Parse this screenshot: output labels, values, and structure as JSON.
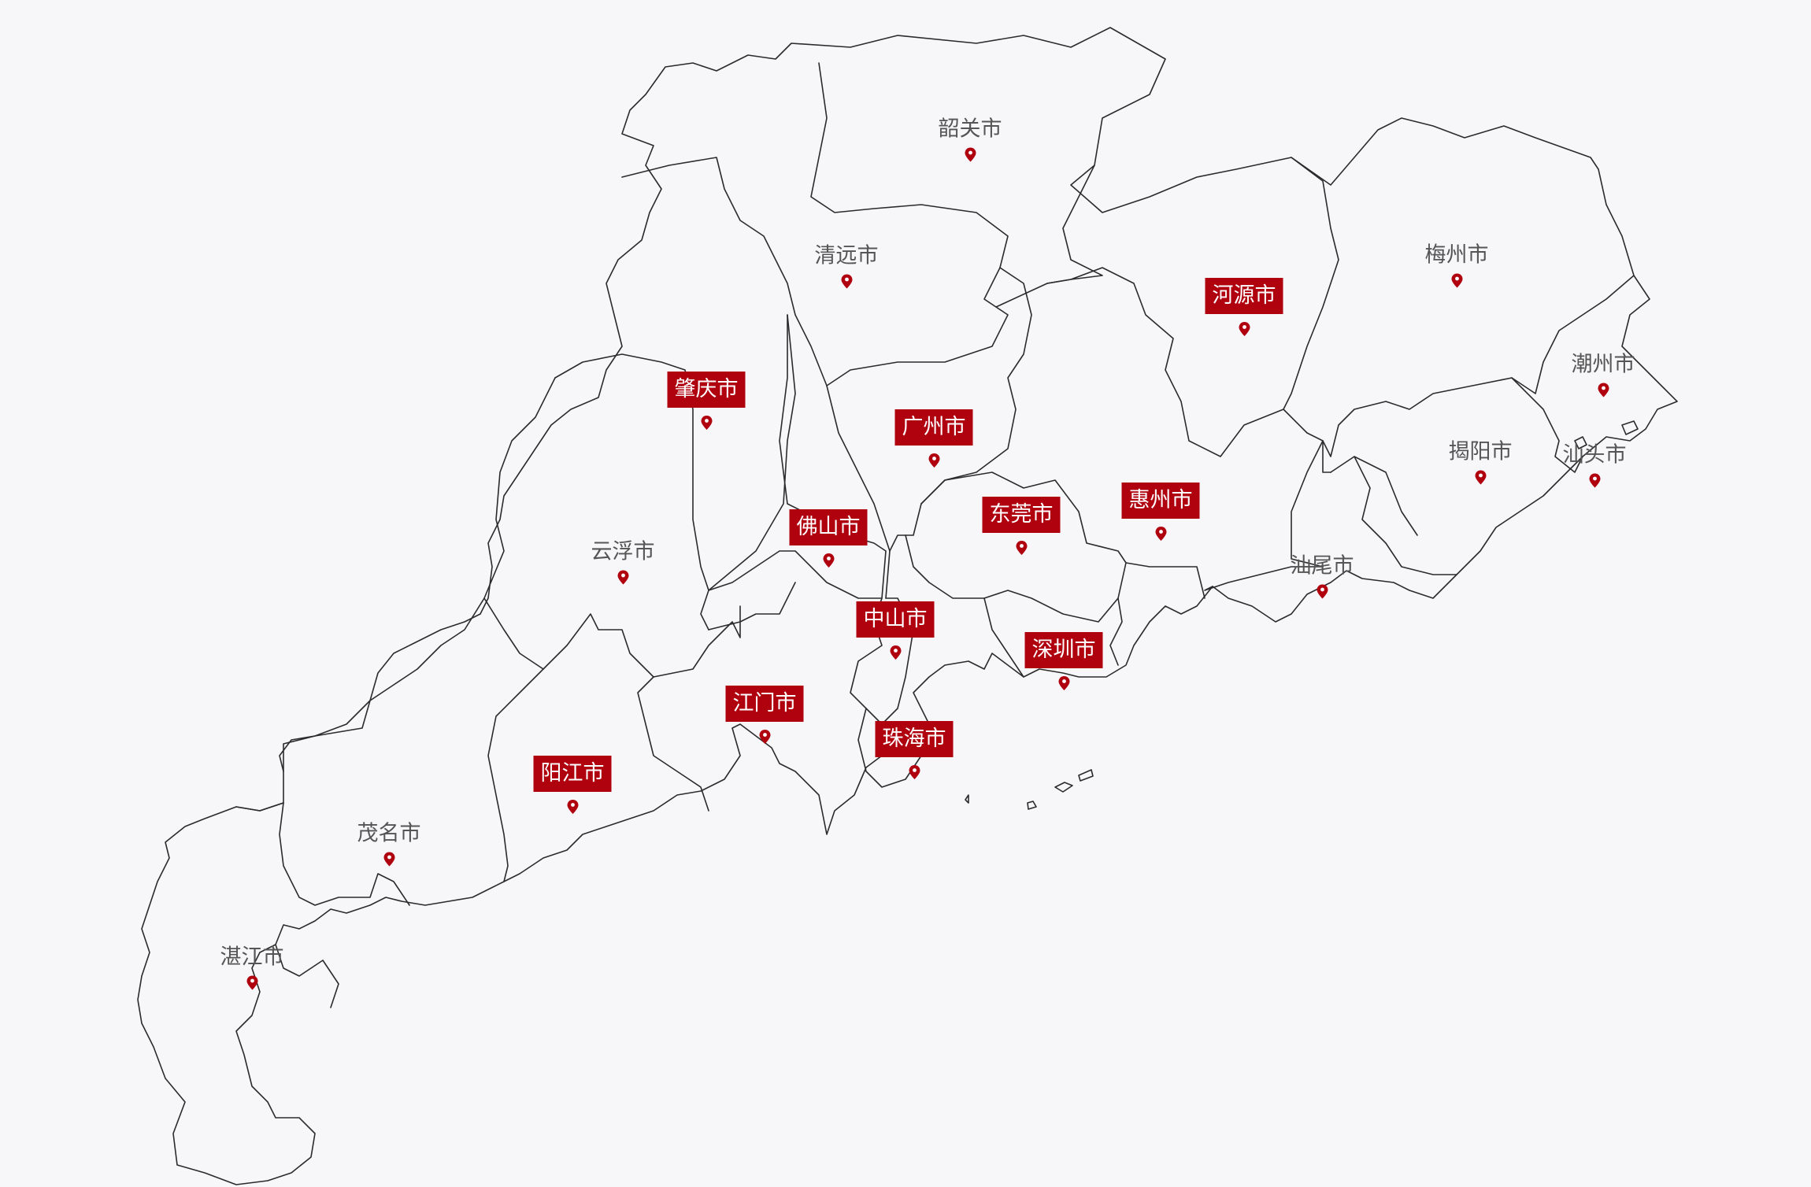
{
  "colors": {
    "background": "#f7f6f8",
    "border": "#2b2b2b",
    "plain_label": "#555555",
    "highlight_fill": "#b0010f",
    "highlight_text": "#ffffff",
    "pin": "#b0010f"
  },
  "icons": {
    "marker": "map-pin-icon"
  },
  "cities": [
    {
      "key": "shaoguan",
      "name": "韶关市",
      "highlighted": false
    },
    {
      "key": "qingyuan",
      "name": "清远市",
      "highlighted": false
    },
    {
      "key": "heyuan",
      "name": "河源市",
      "highlighted": true
    },
    {
      "key": "meizhou",
      "name": "梅州市",
      "highlighted": false
    },
    {
      "key": "chaozhou",
      "name": "潮州市",
      "highlighted": false
    },
    {
      "key": "zhaoqing",
      "name": "肇庆市",
      "highlighted": true
    },
    {
      "key": "guangzhou",
      "name": "广州市",
      "highlighted": true
    },
    {
      "key": "jieyang",
      "name": "揭阳市",
      "highlighted": false
    },
    {
      "key": "shantou",
      "name": "汕头市",
      "highlighted": false
    },
    {
      "key": "dongguan",
      "name": "东莞市",
      "highlighted": true
    },
    {
      "key": "huizhou",
      "name": "惠州市",
      "highlighted": true
    },
    {
      "key": "foshan",
      "name": "佛山市",
      "highlighted": true
    },
    {
      "key": "yunfu",
      "name": "云浮市",
      "highlighted": false
    },
    {
      "key": "shanwei",
      "name": "汕尾市",
      "highlighted": false
    },
    {
      "key": "zhongshan",
      "name": "中山市",
      "highlighted": true
    },
    {
      "key": "shenzhen",
      "name": "深圳市",
      "highlighted": true
    },
    {
      "key": "jiangmen",
      "name": "江门市",
      "highlighted": true
    },
    {
      "key": "zhuhai",
      "name": "珠海市",
      "highlighted": true
    },
    {
      "key": "yangjiang",
      "name": "阳江市",
      "highlighted": true
    },
    {
      "key": "maoming",
      "name": "茂名市",
      "highlighted": false
    },
    {
      "key": "zhanjiang",
      "name": "湛江市",
      "highlighted": false
    }
  ]
}
